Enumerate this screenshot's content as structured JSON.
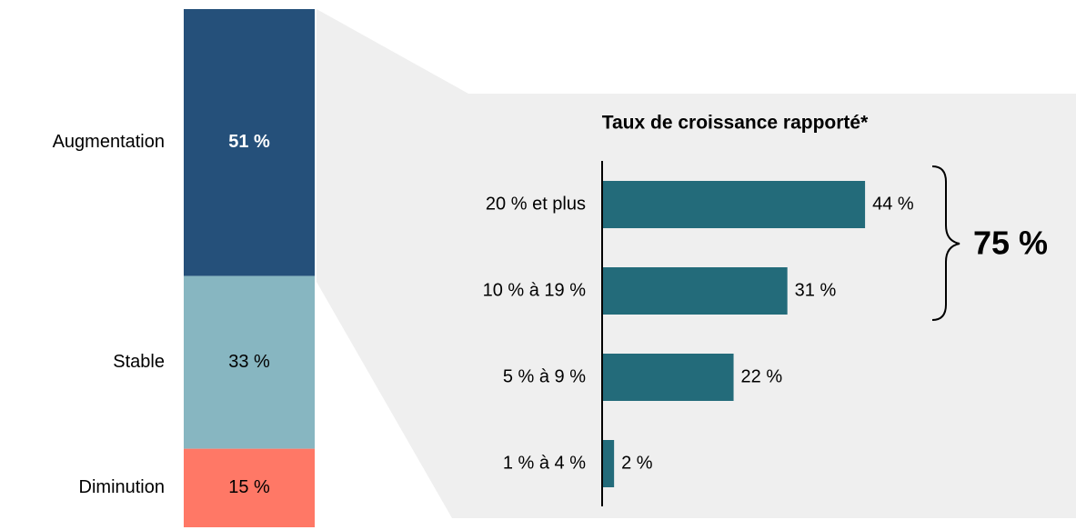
{
  "chart_data": [
    {
      "type": "stacked-bar",
      "categories": [
        "Augmentation",
        "Stable",
        "Diminution"
      ],
      "values": [
        51,
        33,
        15
      ],
      "value_labels": [
        "51 %",
        "33 %",
        "15 %"
      ],
      "colors": [
        "#25507a",
        "#87b6c1",
        "#ff7866"
      ]
    },
    {
      "type": "hbar",
      "title": "Taux de croissance rapporté*",
      "categories": [
        "20 % et plus",
        "10 % à 19 %",
        "5 % à 9 %",
        "1 % à 4 %"
      ],
      "values": [
        44,
        31,
        22,
        2
      ],
      "value_labels": [
        "44 %",
        "31 %",
        "22 %",
        "2 %"
      ],
      "color": "#236b7a",
      "annotation": "75 %"
    }
  ]
}
